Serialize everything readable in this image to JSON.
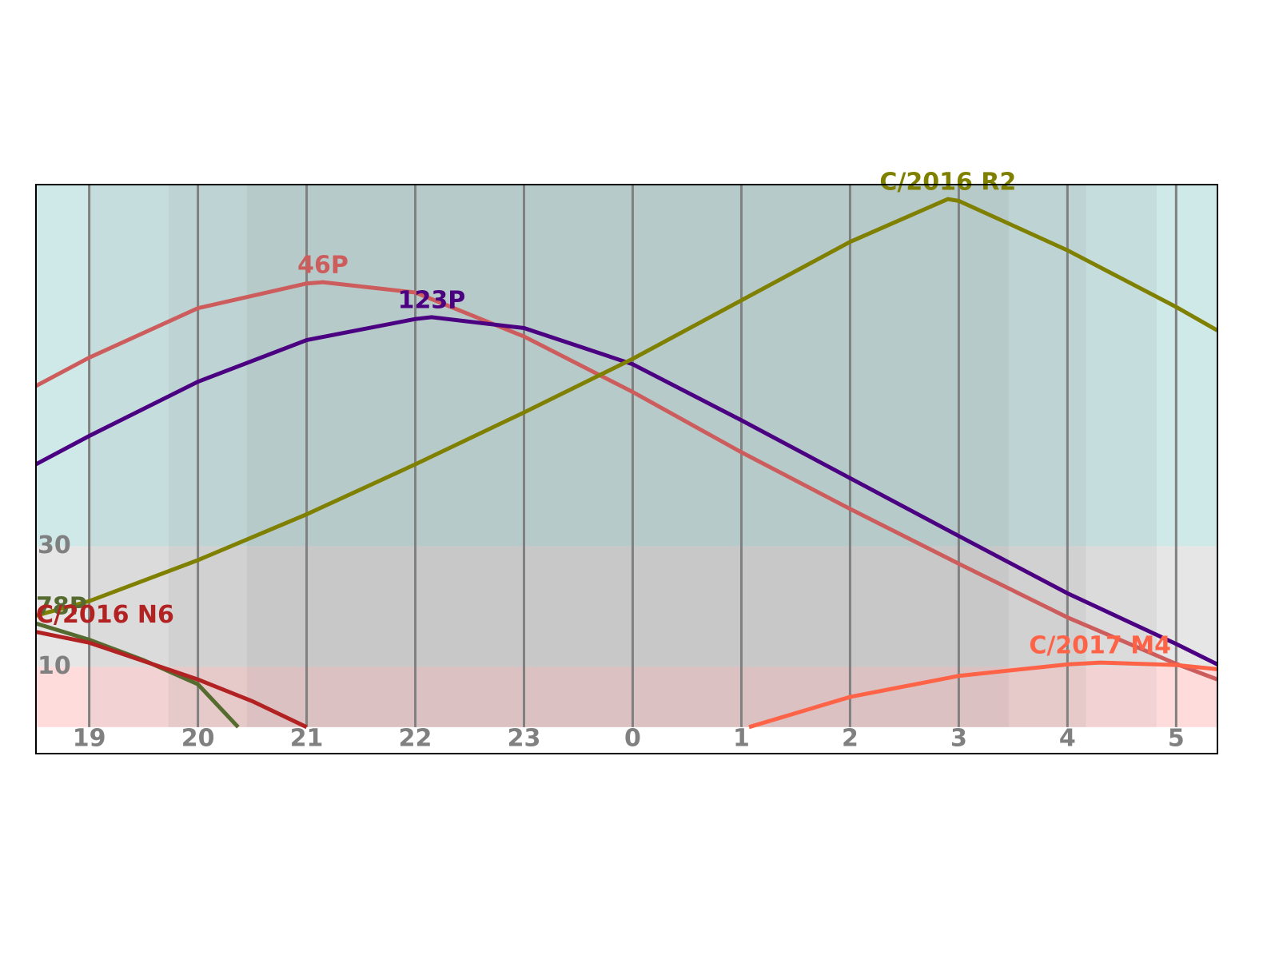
{
  "chart_data": {
    "type": "line",
    "xlim": [
      18.51,
      29.38
    ],
    "xticks": [
      19,
      20,
      21,
      22,
      23,
      {
        "value": 24,
        "label": "0"
      },
      {
        "value": 25,
        "label": "1"
      },
      {
        "value": 26,
        "label": "2"
      },
      {
        "value": 27,
        "label": "3"
      },
      {
        "value": 28,
        "label": "4"
      },
      {
        "value": 29,
        "label": "5"
      }
    ],
    "ylim": [
      -4.4,
      90
    ],
    "yticks": [
      10,
      30
    ],
    "grid": true,
    "night_shading": [
      [
        18.99,
        28.82
      ],
      [
        19.73,
        28.17
      ],
      [
        20.45,
        27.46
      ]
    ],
    "series": [
      {
        "name": "46P",
        "color": "#cd5c5c",
        "x": [
          18.51,
          19,
          20,
          21,
          21.15,
          22,
          23,
          24,
          25,
          26,
          27,
          28,
          29,
          29.38
        ],
        "values": [
          56.6,
          61.3,
          69.5,
          73.6,
          73.8,
          72.1,
          64.8,
          55.6,
          45.6,
          36.2,
          27.1,
          18.2,
          10.5,
          7.9
        ]
      },
      {
        "name": "123P",
        "color": "#4b0082",
        "x": [
          18.51,
          19,
          20,
          21,
          22,
          22.15,
          23,
          24,
          25,
          26,
          27,
          28,
          29,
          29.38
        ],
        "values": [
          43.6,
          48.3,
          57.3,
          64.2,
          67.7,
          68.0,
          66.2,
          60.2,
          50.9,
          41.3,
          31.7,
          22.2,
          13.8,
          10.4
        ]
      },
      {
        "name": "C/2016 R2",
        "color": "#808000",
        "x": [
          18.51,
          19,
          20,
          21,
          22,
          23,
          24,
          25,
          26,
          26.9,
          27,
          28,
          29,
          29.38
        ],
        "values": [
          18.5,
          20.9,
          27.7,
          35.3,
          43.6,
          52.2,
          61.1,
          70.8,
          80.5,
          87.6,
          87.3,
          79.1,
          69.7,
          65.8
        ]
      },
      {
        "name": "78P",
        "color": "#556b2f",
        "x": [
          18.51,
          19,
          19.5,
          20,
          20.37
        ],
        "values": [
          17.2,
          14.5,
          11.1,
          7.1,
          0
        ]
      },
      {
        "name": "C/2016 N6",
        "color": "#b22222",
        "x": [
          18.51,
          19,
          20,
          20.5,
          21
        ],
        "values": [
          15.8,
          14.0,
          7.9,
          4.3,
          0
        ]
      },
      {
        "name": "C/2017 M4",
        "color": "#ff6347",
        "x": [
          25.07,
          26,
          27,
          28,
          28.3,
          29,
          29.38
        ],
        "values": [
          0,
          5.0,
          8.5,
          10.4,
          10.7,
          10.3,
          9.6
        ]
      }
    ]
  }
}
